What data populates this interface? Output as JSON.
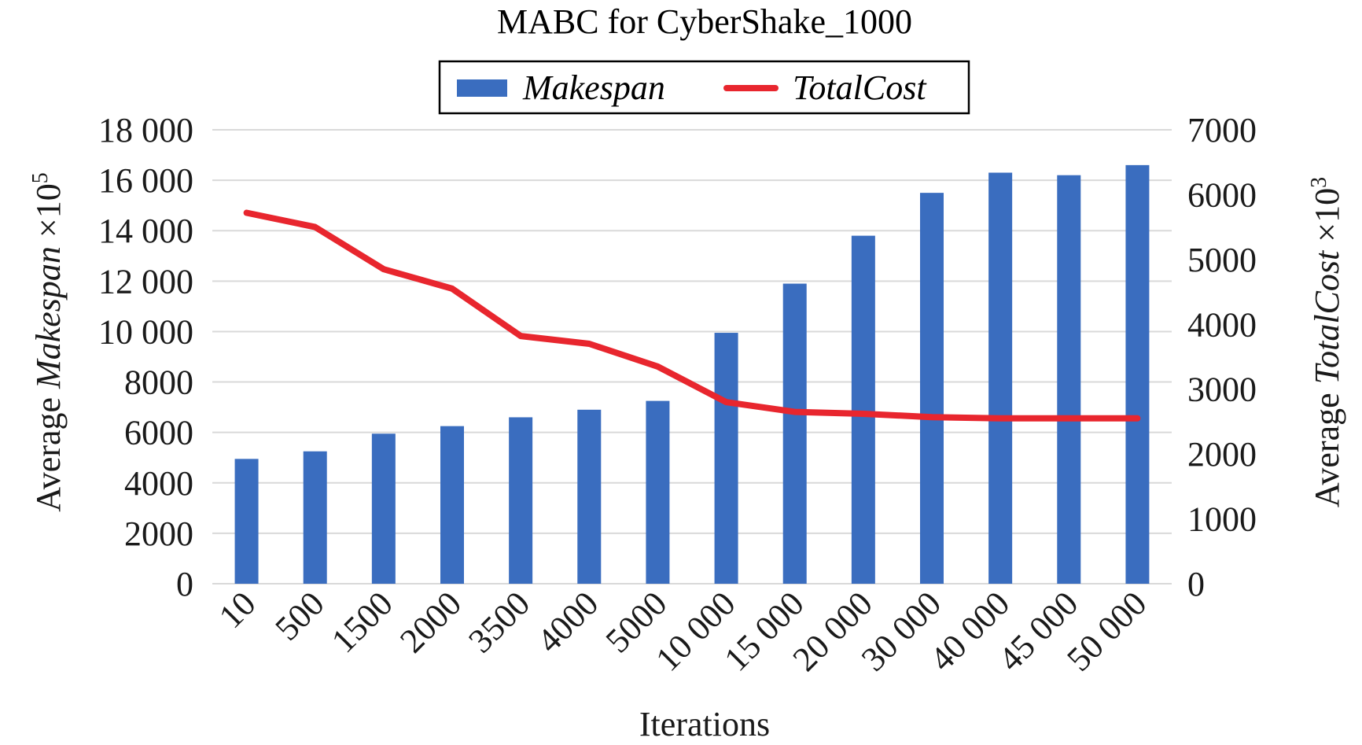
{
  "chart_data": {
    "type": "bar",
    "title": "MABC for CyberShake_1000",
    "categories": [
      "10",
      "500",
      "1500",
      "2000",
      "3500",
      "4000",
      "5000",
      "10 000",
      "15 000",
      "20 000",
      "30 000",
      "40 000",
      "45 000",
      "50 000"
    ],
    "xlabel": "Iterations",
    "ylabel": {
      "prefix": "Average ",
      "emph": "Makespan",
      "suffix": " ×10",
      "sup": "5"
    },
    "y2label": {
      "prefix": "Average ",
      "emph": "TotalCost",
      "suffix": " ×10",
      "sup": "3"
    },
    "ylim": [
      0,
      18000
    ],
    "y2lim": [
      0,
      7000
    ],
    "yticks": [
      "0",
      "2000",
      "4000",
      "6000",
      "8000",
      "10 000",
      "12 000",
      "14 000",
      "16 000",
      "18 000"
    ],
    "y2ticks": [
      "0",
      "1000",
      "2000",
      "3000",
      "4000",
      "5000",
      "6000",
      "7000"
    ],
    "grid": true,
    "legend_position": "top",
    "series": [
      {
        "name": "Makespan",
        "type": "bar",
        "axis": "left",
        "color": "#3a6dbf",
        "values": [
          4950,
          5250,
          5950,
          6250,
          6600,
          6900,
          7250,
          9950,
          11900,
          13800,
          15500,
          16300,
          16200,
          16600
        ]
      },
      {
        "name": "TotalCost",
        "type": "line",
        "axis": "right",
        "color": "#e8262e",
        "values": [
          5720,
          5500,
          4850,
          4550,
          3820,
          3700,
          3350,
          2800,
          2650,
          2620,
          2570,
          2550,
          2550,
          2550
        ]
      }
    ]
  }
}
